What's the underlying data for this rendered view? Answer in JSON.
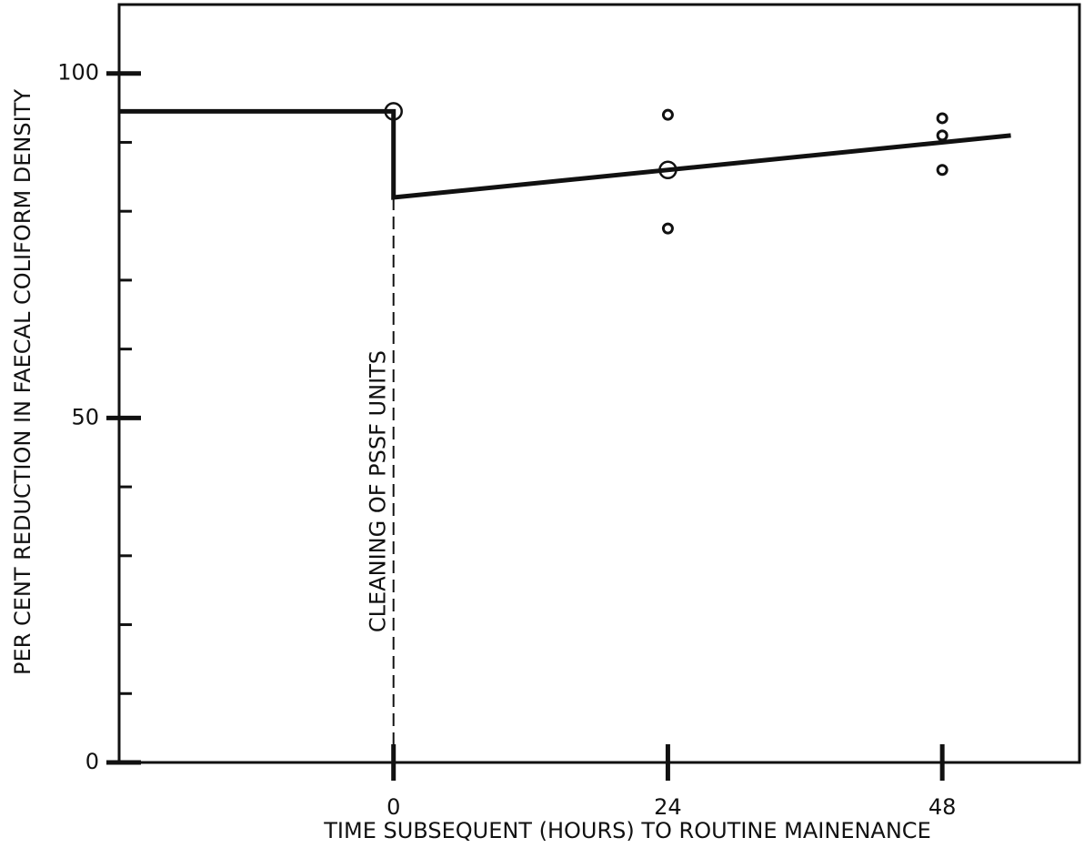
{
  "chart_data": {
    "type": "line",
    "y_label": "PER CENT REDUCTION IN FAECAL COLIFORM DENSITY",
    "x_label": "TIME SUBSEQUENT (HOURS) TO ROUTINE MAINENANCE",
    "annotation": {
      "text": "CLEANING OF PSSF UNITS",
      "x": 0
    },
    "xlim": [
      -24,
      60
    ],
    "ylim": [
      0,
      110
    ],
    "xticks": [
      0,
      24,
      48
    ],
    "yticks": [
      0,
      50,
      100
    ],
    "yminor_ticks": [
      10,
      20,
      30,
      40,
      60,
      70,
      80,
      90
    ],
    "color": "#111111",
    "series": [
      {
        "style": "line",
        "x": [
          -24,
          0,
          0,
          54
        ],
        "values": [
          94.5,
          94.5,
          82,
          91
        ]
      },
      {
        "style": "markers",
        "marker": "large",
        "x": [
          0,
          24
        ],
        "values": [
          94.5,
          86
        ]
      },
      {
        "style": "markers",
        "marker": "small",
        "x": [
          24,
          24,
          48,
          48,
          48
        ],
        "values": [
          94,
          77.5,
          93.5,
          91,
          86
        ]
      }
    ]
  }
}
